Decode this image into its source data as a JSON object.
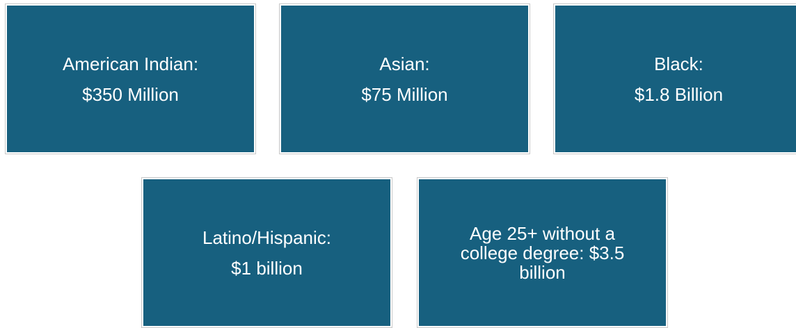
{
  "tiles": [
    {
      "lines": [
        "American Indian:",
        "$350 Million"
      ]
    },
    {
      "lines": [
        "Asian:",
        "$75 Million"
      ]
    },
    {
      "lines": [
        "Black:",
        "$1.8 Billion"
      ]
    },
    {
      "lines": [
        "Latino/Hispanic:",
        "$1 billion"
      ]
    },
    {
      "text": "Age 25+ without a college degree: $3.5 billion"
    }
  ]
}
